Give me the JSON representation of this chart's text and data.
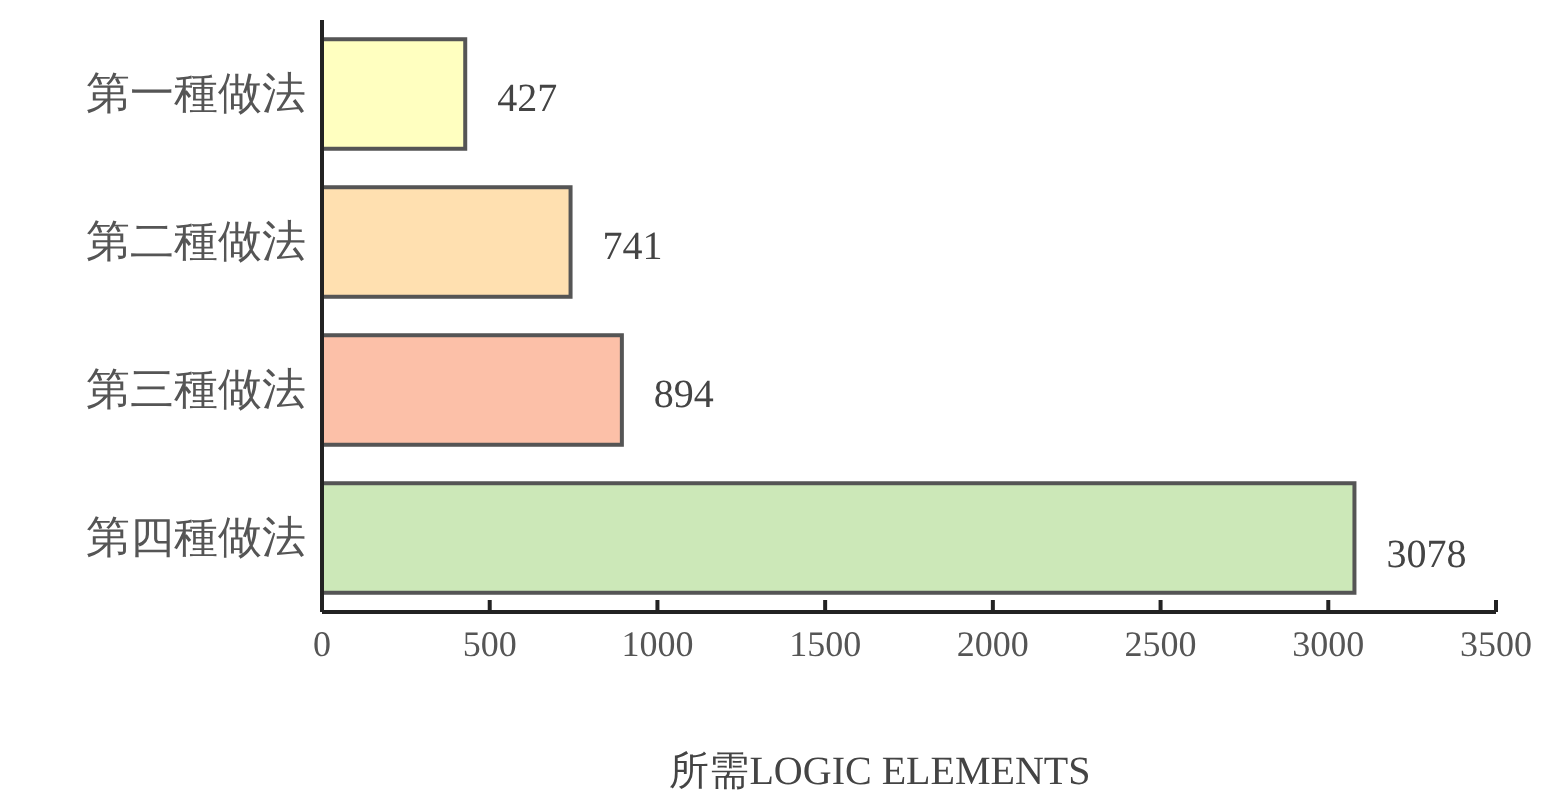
{
  "chart_data": {
    "type": "bar",
    "orientation": "horizontal",
    "categories": [
      "第一種做法",
      "第二種做法",
      "第三種做法",
      "第四種做法"
    ],
    "values": [
      427,
      741,
      894,
      3078
    ],
    "colors": [
      "#ffffc0",
      "#ffe0b0",
      "#fcc0a8",
      "#cce8b8"
    ],
    "xlim": [
      0,
      3500
    ],
    "xticks": [
      0,
      500,
      1000,
      1500,
      2000,
      2500,
      3000,
      3500
    ],
    "xlabel": "所需LOGIC ELEMENTS",
    "data_labels": true,
    "grid": false
  }
}
